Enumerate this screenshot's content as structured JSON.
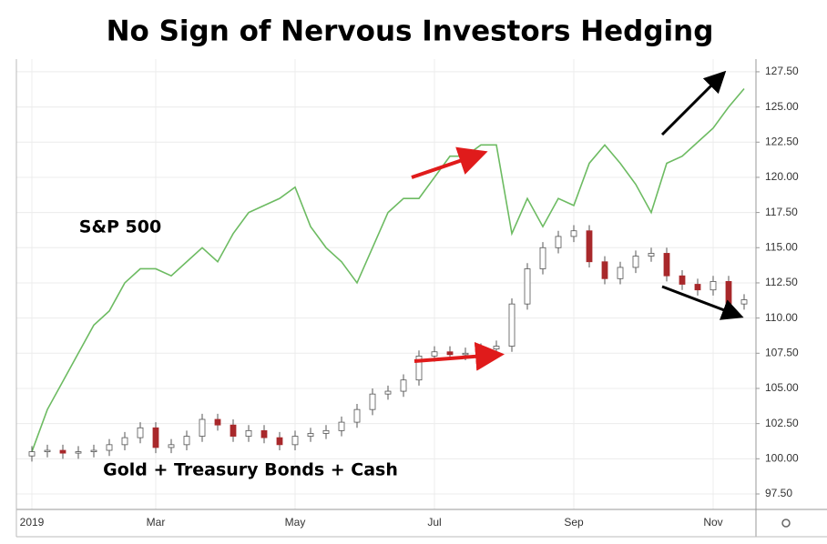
{
  "chart_data": {
    "type": "combo",
    "title": "No Sign of Nervous Investors Hedging",
    "categories": [
      "2019",
      null,
      null,
      null,
      null,
      null,
      null,
      null,
      "Mar",
      null,
      null,
      null,
      null,
      null,
      null,
      null,
      null,
      "May",
      null,
      null,
      null,
      null,
      null,
      null,
      null,
      null,
      "Jul",
      null,
      null,
      null,
      null,
      null,
      null,
      null,
      null,
      "Sep",
      null,
      null,
      null,
      null,
      null,
      null,
      null,
      null,
      "Nov",
      null,
      null
    ],
    "ylim": [
      96.4,
      128.4
    ],
    "yticks": [
      {
        "value": 97.5,
        "label": "97.50"
      },
      {
        "value": 100,
        "label": "100.00"
      },
      {
        "value": 102.5,
        "label": "102.50"
      },
      {
        "value": 105,
        "label": "105.00"
      },
      {
        "value": 107.5,
        "label": "107.50"
      },
      {
        "value": 110,
        "label": "110.00"
      },
      {
        "value": 112.5,
        "label": "112.50"
      },
      {
        "value": 115,
        "label": "115.00"
      },
      {
        "value": 117.5,
        "label": "117.50"
      },
      {
        "value": 120,
        "label": "120.00"
      },
      {
        "value": 122.5,
        "label": "122.50"
      },
      {
        "value": 125,
        "label": "125.00"
      },
      {
        "value": 127.5,
        "label": "127.50"
      }
    ],
    "grid": true,
    "series": [
      {
        "name": "S&P 500",
        "type": "line",
        "color": "#6dbb62",
        "values": [
          100.5,
          103.5,
          105.5,
          107.5,
          109.5,
          110.5,
          112.5,
          113.5,
          113.5,
          113,
          114,
          115,
          114,
          116,
          117.5,
          118,
          118.5,
          119.3,
          116.5,
          115,
          114,
          112.5,
          115,
          117.5,
          118.5,
          118.5,
          120,
          121.5,
          121.5,
          122.3,
          122.3,
          116,
          118.5,
          116.5,
          118.5,
          118,
          121,
          122.3,
          121,
          119.5,
          117.5,
          121,
          121.5,
          122.5,
          123.5,
          125,
          126.3
        ]
      },
      {
        "name": "Gold + Treasury Bonds + Cash",
        "type": "candlestick",
        "up_color": "#ffffff",
        "down_color": "#a8282b",
        "wick_color": "#555555",
        "open": [
          100.2,
          100.5,
          100.6,
          100.4,
          100.5,
          100.6,
          101,
          101.5,
          102.2,
          100.8,
          101,
          101.6,
          102.8,
          102.4,
          101.6,
          102,
          101.5,
          101,
          101.6,
          101.8,
          102,
          102.6,
          103.5,
          104.6,
          104.8,
          105.6,
          107.3,
          107.6,
          107.4,
          107.5,
          107.8,
          108,
          111,
          113.5,
          115,
          115.8,
          116.2,
          114,
          112.8,
          113.6,
          114.4,
          114.6,
          113,
          112.4,
          112,
          112.6,
          111
        ],
        "high": [
          100.9,
          101.0,
          101.0,
          100.9,
          101.0,
          101.4,
          101.9,
          102.6,
          102.6,
          101.4,
          102.0,
          103.2,
          103.2,
          102.8,
          102.4,
          102.4,
          101.9,
          102.0,
          102.2,
          102.4,
          103.0,
          103.9,
          105.0,
          105.2,
          106.0,
          107.7,
          108.0,
          108.0,
          107.9,
          108.2,
          108.4,
          111.4,
          113.9,
          115.4,
          116.2,
          116.6,
          116.6,
          114.4,
          114.0,
          114.8,
          115.0,
          115.0,
          113.4,
          112.8,
          113.0,
          113.0,
          111.7
        ],
        "low": [
          99.8,
          100.1,
          100.0,
          100.0,
          100.1,
          100.2,
          100.6,
          101.1,
          100.4,
          100.4,
          100.6,
          101.2,
          102.0,
          101.2,
          101.2,
          101.1,
          100.6,
          100.6,
          101.2,
          101.4,
          101.6,
          102.2,
          103.1,
          104.2,
          104.4,
          105.2,
          106.9,
          107.0,
          107.0,
          107.1,
          107.4,
          107.6,
          110.6,
          113.1,
          114.6,
          115.4,
          113.6,
          112.4,
          112.4,
          113.2,
          114.0,
          112.6,
          112.0,
          111.6,
          111.6,
          110.6,
          110.6
        ],
        "close": [
          100.5,
          100.6,
          100.4,
          100.5,
          100.6,
          101,
          101.5,
          102.2,
          100.8,
          101,
          101.6,
          102.8,
          102.4,
          101.6,
          102,
          101.5,
          101,
          101.6,
          101.8,
          102,
          102.6,
          103.5,
          104.6,
          104.8,
          105.6,
          107.3,
          107.6,
          107.4,
          107.5,
          107.8,
          108,
          111,
          113.5,
          115,
          115.8,
          116.2,
          114,
          112.8,
          113.6,
          114.4,
          114.6,
          113,
          112.4,
          112,
          112.6,
          111,
          111.3
        ]
      }
    ]
  }
}
